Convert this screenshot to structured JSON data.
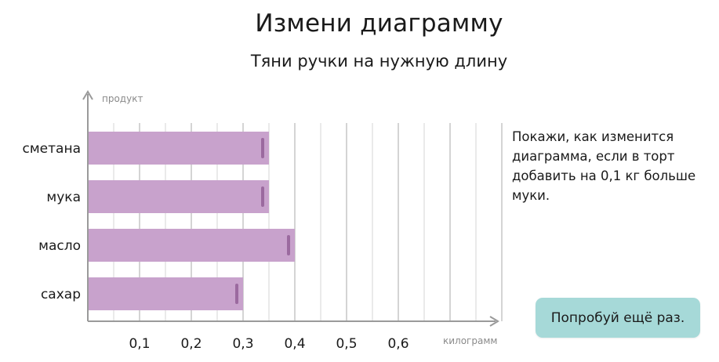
{
  "header": {
    "title": "Измени диаграмму",
    "subtitle": "Тяни ручки на нужную длину"
  },
  "task": {
    "text": "Покажи, как изменится диаграмма, если в торт добавить на 0,1 кг больше муки."
  },
  "retry_button": {
    "label": "Попробуй ещё раз."
  },
  "colors": {
    "bar": "#c8a2cc",
    "handle": "#9b6a9f",
    "gridline": "#bdbdbd",
    "axis": "#9a9a9a",
    "button": "#a6d9d8"
  },
  "chart_data": {
    "type": "bar",
    "orientation": "horizontal",
    "interactive": true,
    "xlabel": "килограмм",
    "ylabel": "продукт",
    "categories": [
      "сметана",
      "мука",
      "масло",
      "сахар"
    ],
    "values": [
      0.35,
      0.35,
      0.4,
      0.3
    ],
    "xlim": [
      0,
      0.8
    ],
    "ticks": [
      0.1,
      0.2,
      0.3,
      0.4,
      0.5,
      0.6
    ],
    "tick_labels": [
      "0,1",
      "0,2",
      "0,3",
      "0,4",
      "0,5",
      "0,6"
    ],
    "grid": true
  }
}
